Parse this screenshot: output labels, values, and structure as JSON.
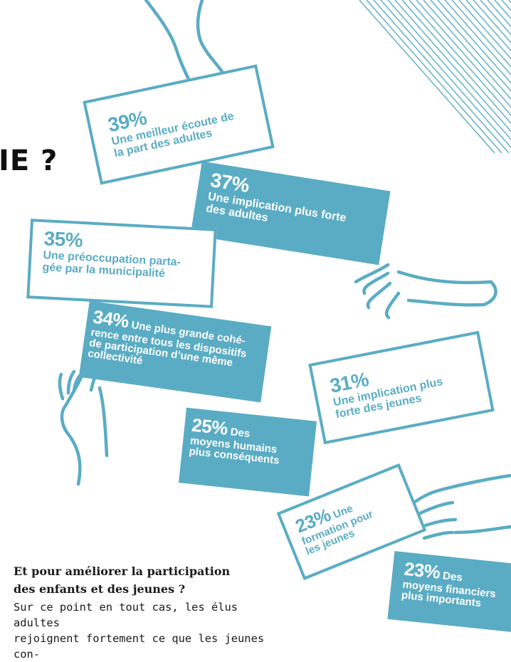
{
  "title_fragment": "IE ?",
  "colors": {
    "accent": "#5aacc4",
    "text": "#1a1a1a",
    "title": "#111111"
  },
  "cards": [
    {
      "pct": "39%",
      "label": [
        "Une meilleur écoute de",
        "la part des adultes"
      ],
      "style": "outline"
    },
    {
      "pct": "37%",
      "label": [
        "Une implication plus forte",
        "des adultes"
      ],
      "style": "filled"
    },
    {
      "pct": "35%",
      "label": [
        "Une préoccupation parta-",
        "gée par la municipalité"
      ],
      "style": "outline"
    },
    {
      "pct": "34%",
      "label": [
        "Une plus grande cohé-",
        "rence entre tous les dispositifs",
        "de participation d’une même",
        "collectivité"
      ],
      "style": "filled"
    },
    {
      "pct": "31%",
      "label": [
        "Une implication plus",
        "forte des jeunes"
      ],
      "style": "outline"
    },
    {
      "pct": "25%",
      "label": [
        "Des",
        "moyens humains",
        "plus conséquents"
      ],
      "style": "filled"
    },
    {
      "pct": "23%",
      "label": [
        "Une",
        "formation pour",
        "les jeunes"
      ],
      "style": "outline"
    },
    {
      "pct": "23%",
      "label": [
        "Des",
        "moyens financiers",
        "plus importants"
      ],
      "style": "filled"
    }
  ],
  "body": {
    "heading": [
      "Et pour améliorer la participation",
      "des enfants et des jeunes ?"
    ],
    "paragraph": [
      "Sur ce point en tout cas, les élus adultes",
      "rejoignent fortement ce que les jeunes con-"
    ]
  }
}
